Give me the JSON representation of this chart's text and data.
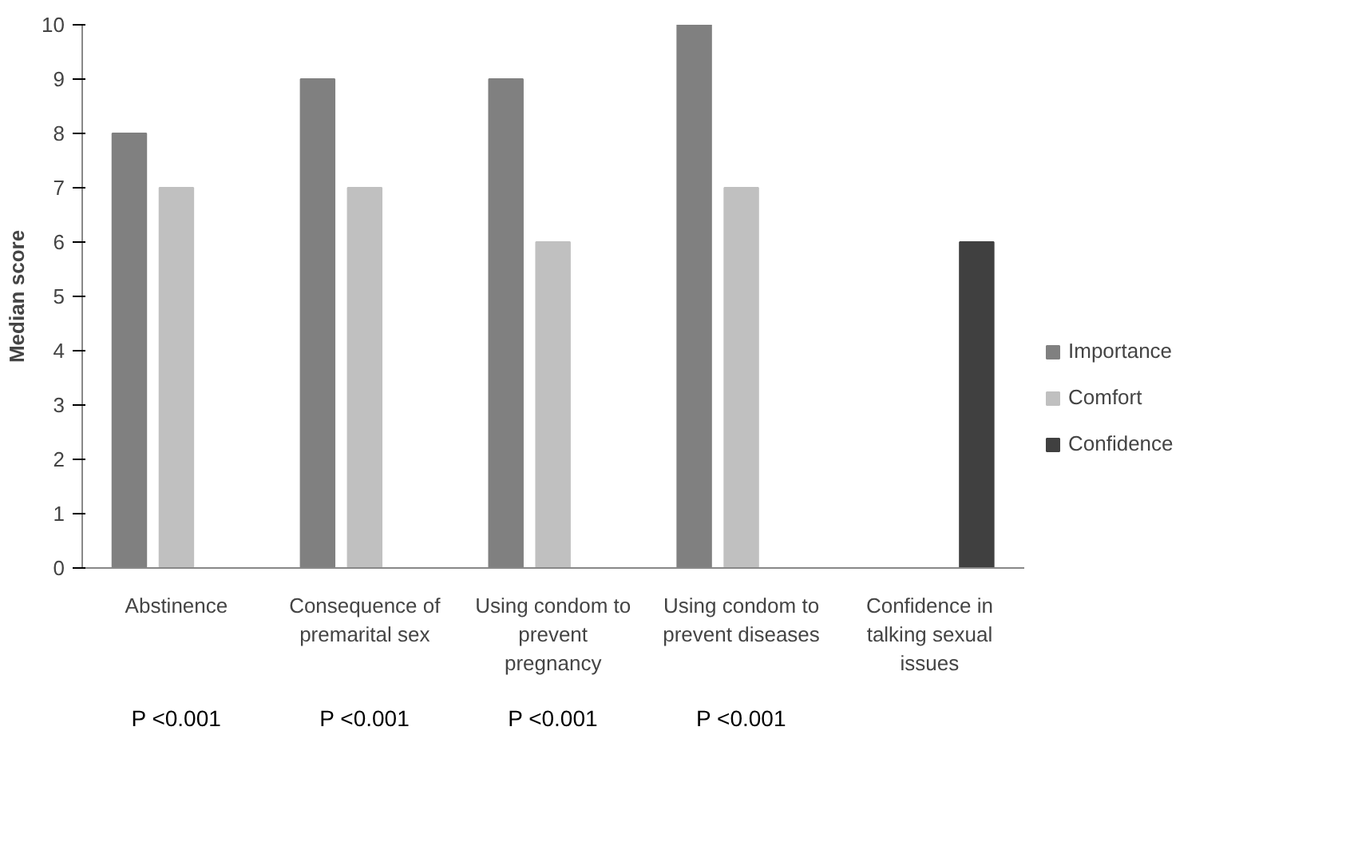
{
  "chart_data": {
    "type": "bar",
    "ylabel": "Median score",
    "categories": [
      "Abstinence",
      "Consequence of premarital sex",
      "Using condom to prevent pregnancy",
      "Using condom to prevent diseases",
      "Confidence in talking sexual issues"
    ],
    "series": [
      {
        "name": "Importance",
        "color": "#808080",
        "values": [
          8,
          9,
          9,
          10,
          null
        ]
      },
      {
        "name": "Comfort",
        "color": "#c0c0c0",
        "values": [
          7,
          7,
          6,
          7,
          null
        ]
      },
      {
        "name": "Confidence",
        "color": "#404040",
        "values": [
          null,
          null,
          null,
          null,
          6
        ]
      }
    ],
    "ylim": [
      0,
      10
    ],
    "yticks": [
      0,
      1,
      2,
      3,
      4,
      5,
      6,
      7,
      8,
      9,
      10
    ],
    "grid": false,
    "legend": "right",
    "annotations": [
      "P <0.001",
      "P <0.001",
      "P <0.001",
      "P <0.001"
    ]
  }
}
